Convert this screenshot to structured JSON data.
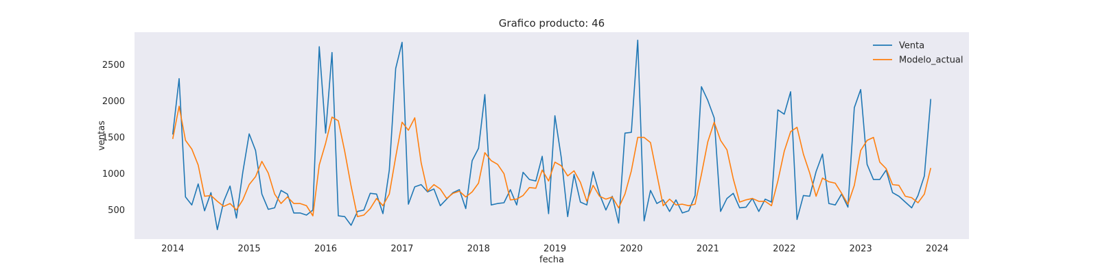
{
  "chart_data": {
    "type": "line",
    "title": "Grafico producto: 46",
    "xlabel": "fecha",
    "ylabel": "ventas",
    "x_start": "2014-01",
    "x_end": "2023-12",
    "xlim": [
      "2013-07",
      "2024-06"
    ],
    "ylim": [
      100,
      2950
    ],
    "xticks": [
      "2014",
      "2015",
      "2016",
      "2017",
      "2018",
      "2019",
      "2020",
      "2021",
      "2022",
      "2023",
      "2024"
    ],
    "yticks": [
      500,
      1000,
      1500,
      2000,
      2500
    ],
    "grid": false,
    "legend_position": "top-right",
    "series": [
      {
        "name": "Venta",
        "color": "#1f77b4",
        "values": [
          1540,
          2310,
          680,
          570,
          860,
          490,
          740,
          230,
          620,
          830,
          390,
          1020,
          1550,
          1320,
          720,
          510,
          530,
          770,
          720,
          460,
          460,
          430,
          500,
          2750,
          1560,
          2670,
          420,
          410,
          290,
          480,
          500,
          730,
          720,
          450,
          1050,
          2450,
          2810,
          580,
          820,
          850,
          750,
          790,
          560,
          650,
          740,
          780,
          520,
          1180,
          1350,
          2090,
          570,
          590,
          600,
          780,
          570,
          1020,
          920,
          900,
          1240,
          450,
          1800,
          1220,
          410,
          990,
          610,
          570,
          1030,
          720,
          500,
          690,
          320,
          1560,
          1570,
          2840,
          350,
          770,
          590,
          640,
          480,
          640,
          460,
          490,
          700,
          2200,
          2010,
          1770,
          480,
          660,
          730,
          530,
          540,
          660,
          480,
          650,
          610,
          1880,
          1820,
          2130,
          370,
          700,
          690,
          1030,
          1270,
          590,
          570,
          720,
          540,
          1910,
          2160,
          1130,
          920,
          920,
          1050,
          740,
          690,
          610,
          530,
          700,
          970,
          2030
        ]
      },
      {
        "name": "Modelo_actual",
        "color": "#ff7f0e",
        "values": [
          1480,
          1930,
          1460,
          1340,
          1120,
          690,
          700,
          620,
          550,
          590,
          500,
          640,
          850,
          960,
          1170,
          1010,
          720,
          590,
          680,
          590,
          590,
          560,
          420,
          1120,
          1420,
          1780,
          1730,
          1310,
          830,
          410,
          430,
          520,
          660,
          560,
          720,
          1230,
          1710,
          1600,
          1770,
          1150,
          760,
          850,
          790,
          660,
          730,
          760,
          680,
          750,
          870,
          1290,
          1180,
          1130,
          1000,
          640,
          650,
          700,
          810,
          800,
          1050,
          900,
          1160,
          1110,
          970,
          1040,
          880,
          620,
          840,
          690,
          650,
          680,
          530,
          720,
          1040,
          1500,
          1500,
          1430,
          990,
          560,
          650,
          570,
          580,
          560,
          580,
          990,
          1440,
          1710,
          1460,
          1330,
          930,
          610,
          640,
          660,
          620,
          620,
          560,
          900,
          1310,
          1580,
          1640,
          1270,
          1010,
          690,
          940,
          890,
          870,
          730,
          580,
          840,
          1320,
          1460,
          1500,
          1160,
          1070,
          850,
          840,
          690,
          670,
          600,
          720,
          1080
        ]
      }
    ]
  }
}
